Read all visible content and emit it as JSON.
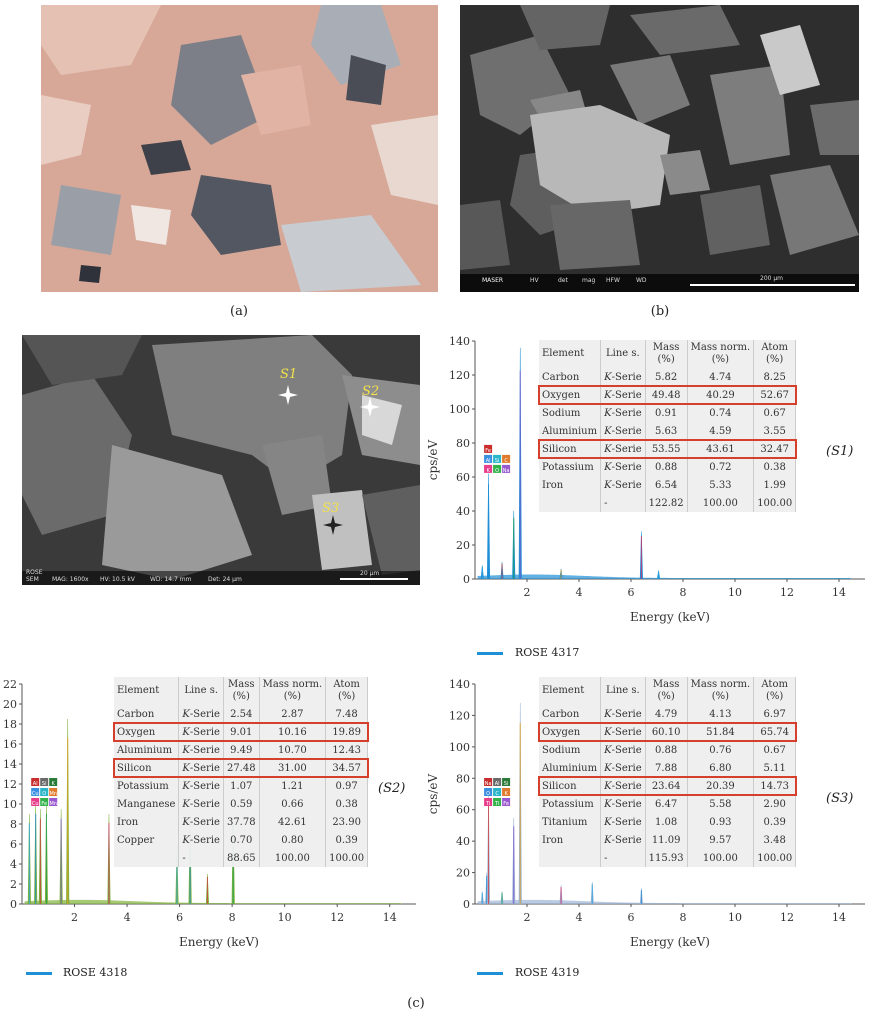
{
  "captions": {
    "a": "(a)",
    "b": "(b)",
    "c": "(c)"
  },
  "sem_b": {
    "footer": [
      "HV",
      "det",
      "mag",
      "HFW",
      "WD"
    ],
    "scale": "200 µm",
    "logo": "MASER"
  },
  "sem_c": {
    "footer": [
      "ROSE",
      "SEM",
      "MAG: 1600x",
      "HV: 10.5 kV",
      "WD: 14.7 mm",
      "Det: 24 µm"
    ],
    "scale": "20 µm",
    "spots": [
      "S1",
      "S2",
      "S3"
    ]
  },
  "colors": {
    "spectrum_blue": "#1f8fd6",
    "spectrum_green": "#7fb23a",
    "highlight": "#d4402c"
  },
  "axes_text": {
    "cps": "cps/eV",
    "energy": "Energy (keV)"
  },
  "table_headers": [
    "Element",
    "Line s.",
    "Mass\n(%)",
    "Mass norm.\n(%)",
    "Atom\n(%)"
  ],
  "panels": [
    {
      "id": "S1",
      "sample": "(S1)",
      "legend": "ROSE 4317",
      "chart_data": {
        "type": "line",
        "xlabel": "Energy (keV)",
        "ylabel": "cps/eV",
        "xlim": [
          0,
          15
        ],
        "ylim": [
          0,
          140
        ],
        "xticks": [
          2,
          4,
          6,
          8,
          10,
          12,
          14
        ],
        "yticks": [
          0,
          20,
          40,
          60,
          80,
          100,
          120,
          140
        ],
        "series": [
          {
            "name": "ROSE 4317",
            "peaks": [
              [
                0.28,
                8
              ],
              [
                0.52,
                62
              ],
              [
                1.04,
                10
              ],
              [
                1.49,
                40
              ],
              [
                1.74,
                136
              ],
              [
                3.31,
                6
              ],
              [
                6.4,
                28
              ],
              [
                7.06,
                5
              ]
            ]
          }
        ],
        "peak_labels": [
          "K",
          "O",
          "Na",
          "Al",
          "Si",
          "C",
          "Fe"
        ]
      },
      "table": {
        "rows": [
          [
            "Carbon",
            "K-Serie",
            "5.82",
            "4.74",
            "8.25"
          ],
          [
            "Oxygen",
            "K-Serie",
            "49.48",
            "40.29",
            "52.67"
          ],
          [
            "Sodium",
            "K-Serie",
            "0.91",
            "0.74",
            "0.67"
          ],
          [
            "Aluminium",
            "K-Serie",
            "5.63",
            "4.59",
            "3.55"
          ],
          [
            "Silicon",
            "K-Serie",
            "53.55",
            "43.61",
            "32.47"
          ],
          [
            "Potassium",
            "K-Serie",
            "0.88",
            "0.72",
            "0.38"
          ],
          [
            "Iron",
            "K-Serie",
            "6.54",
            "5.33",
            "1.99"
          ]
        ],
        "total": [
          "",
          "",
          "122.82",
          "100.00",
          "100.00"
        ],
        "highlighted": [
          "Oxygen",
          "Silicon"
        ]
      }
    },
    {
      "id": "S2",
      "sample": "(S2)",
      "legend": "ROSE 4318",
      "chart_data": {
        "type": "line",
        "xlabel": "Energy (keV)",
        "ylabel": "",
        "xlim": [
          0,
          15
        ],
        "ylim": [
          0,
          22
        ],
        "xticks": [
          2,
          4,
          6,
          8,
          10,
          12,
          14
        ],
        "yticks": [
          0,
          2,
          4,
          6,
          8,
          10,
          12,
          14,
          16,
          18,
          20,
          22
        ],
        "series": [
          {
            "name": "ROSE 4318",
            "peaks": [
              [
                0.28,
                9
              ],
              [
                0.52,
                10
              ],
              [
                0.7,
                9.5
              ],
              [
                0.93,
                10
              ],
              [
                1.49,
                9.5
              ],
              [
                1.74,
                18.5
              ],
              [
                3.31,
                9
              ],
              [
                5.9,
                6
              ],
              [
                6.4,
                9
              ],
              [
                7.06,
                3
              ],
              [
                8.04,
                9
              ]
            ]
          }
        ],
        "peak_labels": [
          "Cu",
          "Fe",
          "Mn",
          "Cu",
          "O",
          "Mn",
          "Al",
          "Si",
          "K"
        ]
      },
      "table": {
        "rows": [
          [
            "Carbon",
            "K-Serie",
            "2.54",
            "2.87",
            "7.48"
          ],
          [
            "Oxygen",
            "K-Serie",
            "9.01",
            "10.16",
            "19.89"
          ],
          [
            "Aluminium",
            "K-Serie",
            "9.49",
            "10.70",
            "12.43"
          ],
          [
            "Silicon",
            "K-Serie",
            "27.48",
            "31.00",
            "34.57"
          ],
          [
            "Potassium",
            "K-Serie",
            "1.07",
            "1.21",
            "0.97"
          ],
          [
            "Manganese",
            "K-Serie",
            "0.59",
            "0.66",
            "0.38"
          ],
          [
            "Iron",
            "K-Serie",
            "37.78",
            "42.61",
            "23.90"
          ],
          [
            "Copper",
            "K-Serie",
            "0.70",
            "0.80",
            "0.39"
          ]
        ],
        "total": [
          "",
          "",
          "88.65",
          "100.00",
          "100.00"
        ],
        "highlighted": [
          "Oxygen",
          "Silicon"
        ]
      }
    },
    {
      "id": "S3",
      "sample": "(S3)",
      "legend": "ROSE 4319",
      "chart_data": {
        "type": "line",
        "xlabel": "Energy (keV)",
        "ylabel": "cps/eV",
        "xlim": [
          0,
          15
        ],
        "ylim": [
          0,
          140
        ],
        "xticks": [
          2,
          4,
          6,
          8,
          10,
          12,
          14
        ],
        "yticks": [
          0,
          20,
          40,
          60,
          80,
          100,
          120,
          140
        ],
        "series": [
          {
            "name": "ROSE 4319",
            "peaks": [
              [
                0.28,
                8
              ],
              [
                0.45,
                20
              ],
              [
                0.52,
                70
              ],
              [
                1.04,
                8
              ],
              [
                1.49,
                55
              ],
              [
                1.74,
                128
              ],
              [
                3.31,
                12
              ],
              [
                4.51,
                14
              ],
              [
                6.4,
                10
              ]
            ]
          }
        ],
        "peak_labels": [
          "Ti",
          "Ti",
          "Fe",
          "O",
          "C",
          "K",
          "Na",
          "Al",
          "Si"
        ]
      },
      "table": {
        "rows": [
          [
            "Carbon",
            "K-Serie",
            "4.79",
            "4.13",
            "6.97"
          ],
          [
            "Oxygen",
            "K-Serie",
            "60.10",
            "51.84",
            "65.74"
          ],
          [
            "Sodium",
            "K-Serie",
            "0.88",
            "0.76",
            "0.67"
          ],
          [
            "Aluminium",
            "K-Serie",
            "7.88",
            "6.80",
            "5.11"
          ],
          [
            "Silicon",
            "K-Serie",
            "23.64",
            "20.39",
            "14.73"
          ],
          [
            "Potassium",
            "K-Serie",
            "6.47",
            "5.58",
            "2.90"
          ],
          [
            "Titanium",
            "K-Serie",
            "1.08",
            "0.93",
            "0.39"
          ],
          [
            "Iron",
            "K-Serie",
            "11.09",
            "9.57",
            "3.48"
          ]
        ],
        "total": [
          "",
          "",
          "115.93",
          "100.00",
          "100.00"
        ],
        "highlighted": [
          "Oxygen",
          "Silicon"
        ]
      }
    }
  ]
}
